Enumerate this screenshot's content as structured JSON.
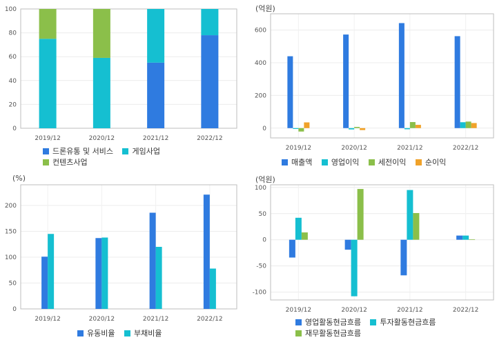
{
  "colors": {
    "blue": "#2f7be0",
    "teal": "#15bfd1",
    "green": "#8bbf4a",
    "orange": "#f0a22a"
  },
  "chart_data": [
    {
      "type": "bar",
      "stacked": true,
      "grid": true,
      "categories": [
        "2019/12",
        "2020/12",
        "2021/12",
        "2022/12"
      ],
      "ylim": [
        0,
        100
      ],
      "yticks": [
        0,
        20,
        40,
        60,
        80,
        100
      ],
      "unit": "",
      "legend_position": "bottom",
      "series": [
        {
          "name": "드론유통 및 서비스",
          "color": "#2f7be0",
          "values": [
            0,
            0,
            55,
            78
          ]
        },
        {
          "name": "게임사업",
          "color": "#15bfd1",
          "values": [
            75,
            59,
            45,
            22
          ]
        },
        {
          "name": "컨텐츠사업",
          "color": "#8bbf4a",
          "values": [
            25,
            41,
            0,
            0
          ]
        }
      ]
    },
    {
      "type": "bar",
      "stacked": false,
      "grid": true,
      "categories": [
        "2019/12",
        "2020/12",
        "2021/12",
        "2022/12"
      ],
      "ylim": [
        -60,
        700
      ],
      "yticks": [
        0,
        200,
        400,
        600
      ],
      "unit": "(억원)",
      "legend_position": "bottom",
      "series": [
        {
          "name": "매출액",
          "color": "#2f7be0",
          "values": [
            440,
            573,
            643,
            563
          ]
        },
        {
          "name": "영업이익",
          "color": "#15bfd1",
          "values": [
            -5,
            -8,
            -7,
            36
          ]
        },
        {
          "name": "세전이익",
          "color": "#8bbf4a",
          "values": [
            -21,
            7,
            37,
            40
          ]
        },
        {
          "name": "순이익",
          "color": "#f0a22a",
          "values": [
            35,
            -12,
            20,
            31
          ]
        }
      ]
    },
    {
      "type": "bar",
      "stacked": false,
      "grid": true,
      "categories": [
        "2019/12",
        "2020/12",
        "2021/12",
        "2022/12"
      ],
      "ylim": [
        0,
        240
      ],
      "yticks": [
        0,
        50,
        100,
        150,
        200
      ],
      "unit": "(%)",
      "legend_position": "bottom",
      "series": [
        {
          "name": "유동비율",
          "color": "#2f7be0",
          "values": [
            101,
            137,
            186,
            221
          ]
        },
        {
          "name": "부채비율",
          "color": "#15bfd1",
          "values": [
            145,
            138,
            120,
            78
          ]
        }
      ]
    },
    {
      "type": "bar",
      "stacked": false,
      "grid": true,
      "categories": [
        "2019/12",
        "2020/12",
        "2021/12",
        "2022/12"
      ],
      "ylim": [
        -115,
        105
      ],
      "yticks": [
        -100,
        -50,
        0,
        50,
        100
      ],
      "unit": "(억원)",
      "legend_position": "bottom",
      "series": [
        {
          "name": "영업활동현금흐름",
          "color": "#2f7be0",
          "values": [
            -34,
            -19,
            -68,
            8
          ]
        },
        {
          "name": "투자활동현금흐름",
          "color": "#15bfd1",
          "values": [
            42,
            -108,
            95,
            8
          ]
        },
        {
          "name": "재무활동현금흐름",
          "color": "#8bbf4a",
          "values": [
            14,
            97,
            51,
            1
          ]
        }
      ]
    }
  ]
}
